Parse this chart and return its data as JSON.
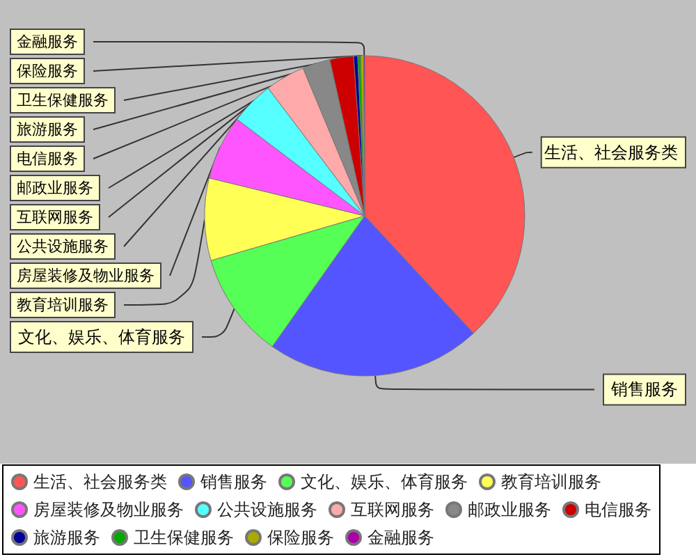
{
  "chart_data": {
    "type": "pie",
    "categories": [
      "生活、社会服务类",
      "销售服务",
      "文化、娱乐、体育服务",
      "教育培训服务",
      "房屋装修及物业服务",
      "公共设施服务",
      "互联网服务",
      "邮政业服务",
      "电信服务",
      "旅游服务",
      "卫生保健服务",
      "保险服务",
      "金融服务"
    ],
    "values": [
      38.1,
      21.7,
      10.7,
      8.3,
      6.5,
      4.4,
      4.0,
      2.8,
      2.4,
      0.4,
      0.3,
      0.3,
      0.1
    ],
    "colors": [
      "#ff5555",
      "#5555ff",
      "#55ff55",
      "#ffff55",
      "#ff55ff",
      "#55ffff",
      "#ffaaaa",
      "#888888",
      "#cc0000",
      "#000099",
      "#00aa00",
      "#aaaa00",
      "#aa00aa"
    ],
    "legend": "bottom"
  }
}
